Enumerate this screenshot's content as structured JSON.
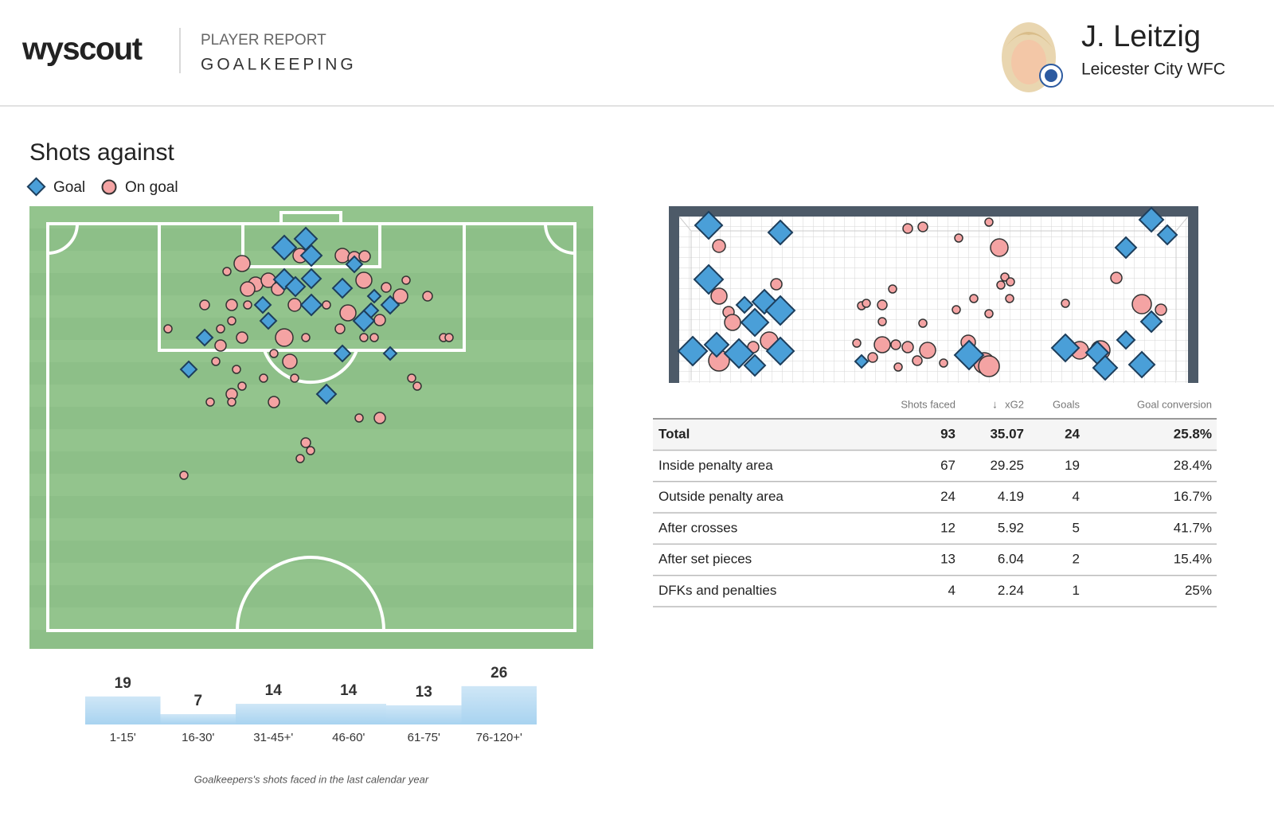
{
  "header": {
    "logo": "wyscout",
    "report_type": "PLAYER REPORT",
    "report_title": "GOALKEEPING",
    "player_name": "J. Leitzig",
    "team": "Leicester City WFC"
  },
  "section_title": "Shots against",
  "legend": [
    "Goal",
    "On goal"
  ],
  "chart_data": {
    "type": "bar",
    "categories": [
      "1-15'",
      "16-30'",
      "31-45+'",
      "46-60'",
      "61-75'",
      "76-120+'"
    ],
    "values": [
      19,
      7,
      14,
      14,
      13,
      26
    ],
    "color": "#a8d3f0"
  },
  "table": {
    "columns": [
      "Shots faced",
      "xG2",
      "Goals",
      "Goal conversion"
    ],
    "rows": [
      [
        "Total",
        "93",
        "35.07",
        "24",
        "25.8%"
      ],
      [
        "Inside penalty area",
        "67",
        "29.25",
        "19",
        "28.4%"
      ],
      [
        "Outside penalty area",
        "24",
        "4.19",
        "4",
        "16.7%"
      ],
      [
        "After crosses",
        "12",
        "5.92",
        "5",
        "41.7%"
      ],
      [
        "After set pieces",
        "13",
        "6.04",
        "2",
        "15.4%"
      ],
      [
        "DFKs and penalties",
        "4",
        "2.24",
        "1",
        "25%"
      ]
    ]
  },
  "footnote": "Goalkeepers's shots faced in the last calendar year"
}
